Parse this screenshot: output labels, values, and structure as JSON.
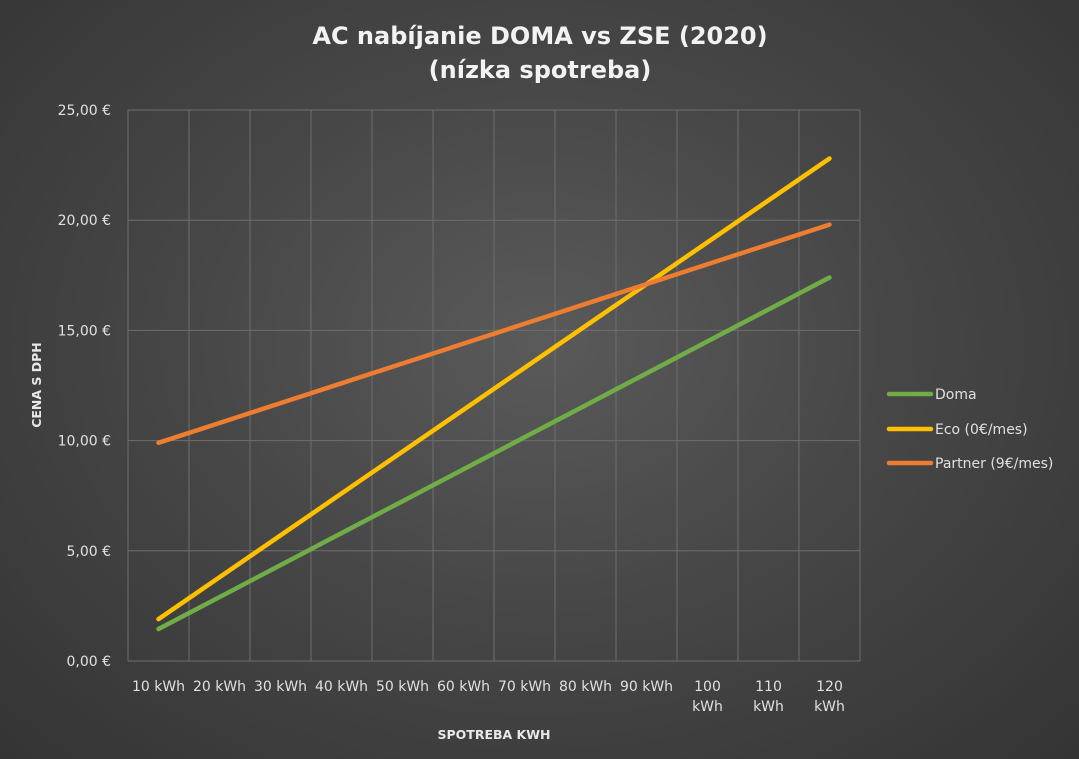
{
  "chart_data": {
    "type": "line",
    "title_line1": "AC nabíjanie DOMA vs ZSE (2020)",
    "title_line2": "(nízka spotreba)",
    "xlabel": "SPOTREBA KWH",
    "ylabel": "CENA S DPH",
    "categories": [
      [
        "10 kWh"
      ],
      [
        "20 kWh"
      ],
      [
        "30 kWh"
      ],
      [
        "40 kWh"
      ],
      [
        "50 kWh"
      ],
      [
        "60 kWh"
      ],
      [
        "70 kWh"
      ],
      [
        "80 kWh"
      ],
      [
        "90 kWh"
      ],
      [
        "100",
        "kWh"
      ],
      [
        "110",
        "kWh"
      ],
      [
        "120",
        "kWh"
      ]
    ],
    "y_ticks": [
      "0,00 €",
      "5,00 €",
      "10,00 €",
      "15,00 €",
      "20,00 €",
      "25,00 €"
    ],
    "ylim": [
      0,
      25
    ],
    "grid": true,
    "legend_position": "right",
    "series": [
      {
        "name": "Doma",
        "color": "#70ad47",
        "values": [
          1.45,
          2.9,
          4.35,
          5.8,
          7.25,
          8.7,
          10.15,
          11.6,
          13.05,
          14.5,
          15.95,
          17.4
        ]
      },
      {
        "name": "Eco (0€/mes)",
        "color": "#ffc000",
        "values": [
          1.9,
          3.8,
          5.7,
          7.6,
          9.5,
          11.4,
          13.3,
          15.2,
          17.1,
          19.0,
          20.9,
          22.8
        ]
      },
      {
        "name": "Partner (9€/mes)",
        "color": "#ed7d31",
        "values": [
          9.9,
          10.8,
          11.7,
          12.6,
          13.5,
          14.4,
          15.3,
          16.2,
          17.1,
          18.0,
          18.9,
          19.8
        ]
      }
    ]
  }
}
